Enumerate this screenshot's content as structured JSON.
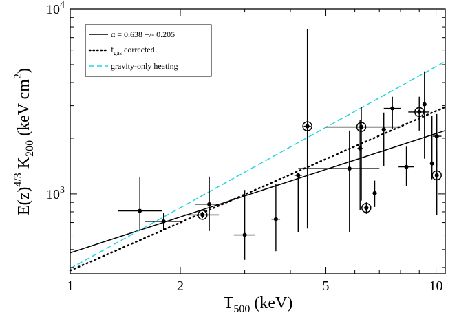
{
  "chart_data": {
    "type": "scatter",
    "x_axis": {
      "label_main": "T",
      "label_sub": "500",
      "label_unit": " (keV)",
      "scale": "log",
      "range": [
        1,
        10.6
      ],
      "major_ticks": [
        1,
        2,
        5,
        10
      ],
      "tick_labels": [
        "1",
        "2",
        "5",
        "10"
      ]
    },
    "y_axis": {
      "label_prefix": "E(z)",
      "label_exp": "4/3",
      "label_main": " K",
      "label_sub": "200",
      "label_unit": " (keV cm",
      "label_unit_exp": "2",
      "label_close": ")",
      "scale": "log",
      "range": [
        370,
        10000
      ],
      "major_ticks": [
        1000,
        10000
      ],
      "tick_labels": [
        {
          "base": "10",
          "exp": "3"
        },
        {
          "base": "10",
          "exp": "4"
        }
      ]
    },
    "legend": {
      "placement": "top-left",
      "entries": [
        {
          "label": "α = 0.638 +/- 0.205",
          "style": "solid",
          "color": "#000000"
        },
        {
          "label_main": "f",
          "label_sub": "gas",
          "label_rest": " corrected",
          "style": "dotted",
          "color": "#000000"
        },
        {
          "label": "gravity-only heating",
          "style": "dashed",
          "color": "#22d4e4"
        }
      ]
    },
    "fit_lines": [
      {
        "name": "α = 0.638 +/- 0.205",
        "style": "solid",
        "color": "#000000",
        "points": [
          [
            1,
            480
          ],
          [
            10.6,
            2200
          ]
        ]
      },
      {
        "name": "fgas corrected",
        "style": "dotted",
        "color": "#000000",
        "points": [
          [
            1,
            385
          ],
          [
            10.6,
            2950
          ]
        ]
      },
      {
        "name": "gravity-only heating",
        "style": "dashed",
        "color": "#22d4e4",
        "points": [
          [
            1,
            395
          ],
          [
            10.6,
            5200
          ]
        ]
      }
    ],
    "points": [
      {
        "x": 1.55,
        "y": 810,
        "x_err": [
          1.35,
          1.78
        ],
        "y_err": [
          630,
          1230
        ],
        "circled": false
      },
      {
        "x": 1.8,
        "y": 710,
        "x_err": [
          1.6,
          2.0
        ],
        "y_err": [
          640,
          790
        ],
        "circled": false
      },
      {
        "x": 2.3,
        "y": 770,
        "x_err": [
          2.05,
          2.55
        ],
        "y_err": [
          740,
          800
        ],
        "circled": true
      },
      {
        "x": 2.4,
        "y": 880,
        "x_err": [
          2.2,
          2.6
        ],
        "y_err": [
          630,
          1240
        ],
        "circled": false
      },
      {
        "x": 3.0,
        "y": 600,
        "x_err": [
          2.8,
          3.2
        ],
        "y_err": [
          440,
          1050
        ],
        "circled": false
      },
      {
        "x": 3.65,
        "y": 730,
        "x_err": [
          3.55,
          3.75
        ],
        "y_err": [
          490,
          1130
        ],
        "circled": false
      },
      {
        "x": 4.2,
        "y": 1260,
        "x_err": [
          4.1,
          4.3
        ],
        "y_err": [
          620,
          1300
        ],
        "circled": false
      },
      {
        "x": 4.45,
        "y": 2320,
        "x_err": [
          4.35,
          4.55
        ],
        "y_err": [
          650,
          7800
        ],
        "circled": true
      },
      {
        "x": 5.8,
        "y": 1370,
        "x_err": [
          4.2,
          7.0
        ],
        "y_err": [
          620,
          2200
        ],
        "circled": false
      },
      {
        "x": 6.2,
        "y": 1760,
        "x_err": [
          6.1,
          6.3
        ],
        "y_err": [
          820,
          2500
        ],
        "circled": false
      },
      {
        "x": 6.25,
        "y": 2300,
        "x_err": [
          5.0,
          8.0
        ],
        "y_err": [
          920,
          2950
        ],
        "circled": true
      },
      {
        "x": 6.45,
        "y": 840,
        "x_err": [
          6.35,
          6.55
        ],
        "y_err": [
          780,
          900
        ],
        "circled": true
      },
      {
        "x": 6.8,
        "y": 1010,
        "x_err": [
          6.7,
          6.9
        ],
        "y_err": [
          850,
          1180
        ],
        "circled": false
      },
      {
        "x": 7.2,
        "y": 2230,
        "x_err": [
          7.1,
          7.3
        ],
        "y_err": [
          1420,
          2750
        ],
        "circled": false
      },
      {
        "x": 7.6,
        "y": 2900,
        "x_err": [
          7.2,
          8.0
        ],
        "y_err": [
          2250,
          3350
        ],
        "circled": false
      },
      {
        "x": 8.3,
        "y": 1400,
        "x_err": [
          7.9,
          8.7
        ],
        "y_err": [
          1100,
          1800
        ],
        "circled": false
      },
      {
        "x": 9.0,
        "y": 2770,
        "x_err": [
          8.4,
          9.6
        ],
        "y_err": [
          2200,
          3350
        ],
        "circled": true
      },
      {
        "x": 9.3,
        "y": 3050,
        "x_err": [
          9.2,
          9.4
        ],
        "y_err": [
          1550,
          4600
        ],
        "circled": false
      },
      {
        "x": 9.75,
        "y": 1460,
        "x_err": [
          9.65,
          9.85
        ],
        "y_err": [
          1200,
          2650
        ],
        "circled": false
      },
      {
        "x": 10.05,
        "y": 2050,
        "x_err": [
          9.8,
          10.35
        ],
        "y_err": [
          1400,
          2700
        ],
        "circled": false
      },
      {
        "x": 10.05,
        "y": 1260,
        "x_err": [
          9.95,
          10.15
        ],
        "y_err": [
          770,
          1700
        ],
        "circled": true
      }
    ]
  }
}
